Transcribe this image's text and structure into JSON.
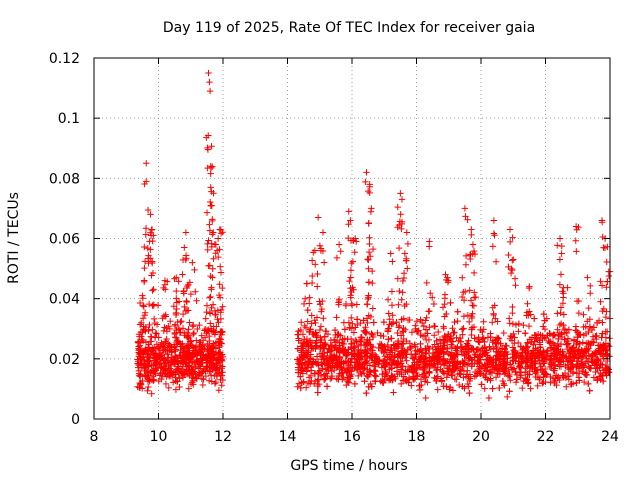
{
  "chart_data": {
    "type": "scatter",
    "title": "Day 119 of 2025, Rate Of TEC Index for receiver gaia",
    "xlabel": "GPS time / hours",
    "ylabel": "ROTI / TECUs",
    "xlim": [
      8,
      24
    ],
    "ylim": [
      0,
      0.12
    ],
    "x_ticks": [
      8,
      10,
      12,
      14,
      16,
      18,
      20,
      22,
      24
    ],
    "x_tick_labels": [
      "8",
      "10",
      "12",
      "14",
      "16",
      "18",
      "20",
      "22",
      "24"
    ],
    "y_ticks": [
      0,
      0.02,
      0.04,
      0.06,
      0.08,
      0.1,
      0.12
    ],
    "y_tick_labels": [
      "0",
      "0.02",
      "0.04",
      "0.06",
      "0.08",
      "0.1",
      "0.12"
    ],
    "grid": true,
    "marker": "+",
    "marker_color": "#ff0000",
    "series": [
      {
        "name": "ROTI",
        "segments": [
          {
            "x_start": 9.35,
            "x_end": 12.0,
            "typical_range": [
              0.01,
              0.03
            ]
          },
          {
            "x_start": 14.3,
            "x_end": 24.0,
            "typical_range": [
              0.01,
              0.03
            ]
          }
        ],
        "peaks": [
          {
            "x": 9.5,
            "y": 0.041
          },
          {
            "x": 9.62,
            "y": 0.085
          },
          {
            "x": 9.62,
            "y": 0.079
          },
          {
            "x": 9.75,
            "y": 0.068
          },
          {
            "x": 9.8,
            "y": 0.063
          },
          {
            "x": 10.2,
            "y": 0.046
          },
          {
            "x": 10.55,
            "y": 0.047
          },
          {
            "x": 10.8,
            "y": 0.057
          },
          {
            "x": 10.85,
            "y": 0.062
          },
          {
            "x": 11.05,
            "y": 0.052
          },
          {
            "x": 11.55,
            "y": 0.115
          },
          {
            "x": 11.58,
            "y": 0.112
          },
          {
            "x": 11.6,
            "y": 0.109
          },
          {
            "x": 11.62,
            "y": 0.084
          },
          {
            "x": 11.62,
            "y": 0.077
          },
          {
            "x": 11.7,
            "y": 0.062
          },
          {
            "x": 11.85,
            "y": 0.06
          },
          {
            "x": 11.9,
            "y": 0.063
          },
          {
            "x": 14.6,
            "y": 0.045
          },
          {
            "x": 14.85,
            "y": 0.056
          },
          {
            "x": 14.95,
            "y": 0.067
          },
          {
            "x": 15.1,
            "y": 0.062
          },
          {
            "x": 15.6,
            "y": 0.058
          },
          {
            "x": 15.9,
            "y": 0.069
          },
          {
            "x": 15.95,
            "y": 0.066
          },
          {
            "x": 16.1,
            "y": 0.06
          },
          {
            "x": 16.45,
            "y": 0.082
          },
          {
            "x": 16.55,
            "y": 0.078
          },
          {
            "x": 16.6,
            "y": 0.07
          },
          {
            "x": 17.2,
            "y": 0.055
          },
          {
            "x": 17.5,
            "y": 0.075
          },
          {
            "x": 17.55,
            "y": 0.073
          },
          {
            "x": 17.7,
            "y": 0.062
          },
          {
            "x": 18.4,
            "y": 0.059
          },
          {
            "x": 18.9,
            "y": 0.048
          },
          {
            "x": 19.5,
            "y": 0.07
          },
          {
            "x": 19.7,
            "y": 0.063
          },
          {
            "x": 19.75,
            "y": 0.058
          },
          {
            "x": 20.4,
            "y": 0.066
          },
          {
            "x": 20.9,
            "y": 0.063
          },
          {
            "x": 21.0,
            "y": 0.053
          },
          {
            "x": 21.5,
            "y": 0.044
          },
          {
            "x": 22.45,
            "y": 0.06
          },
          {
            "x": 22.5,
            "y": 0.055
          },
          {
            "x": 22.95,
            "y": 0.064
          },
          {
            "x": 23.3,
            "y": 0.047
          },
          {
            "x": 23.75,
            "y": 0.066
          },
          {
            "x": 23.85,
            "y": 0.06
          },
          {
            "x": 24.0,
            "y": 0.049
          }
        ]
      }
    ]
  }
}
